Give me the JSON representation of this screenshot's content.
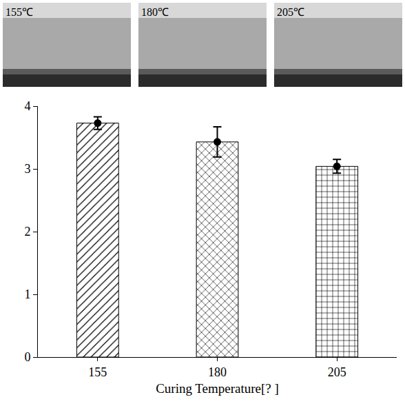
{
  "chart_data": {
    "type": "bar",
    "annotations": [
      "155℃",
      "180℃",
      "205℃"
    ],
    "x_label": "Curing Temperature[? ]",
    "categories": [
      "155",
      "180",
      "205"
    ],
    "values": [
      3.73,
      3.43,
      3.04
    ],
    "error": [
      0.1,
      0.24,
      0.11
    ],
    "color": "#000000",
    "marker": "circle",
    "ylim": [
      0,
      4
    ],
    "yticks": [
      0,
      1,
      2,
      3,
      4
    ],
    "grid": false
  }
}
